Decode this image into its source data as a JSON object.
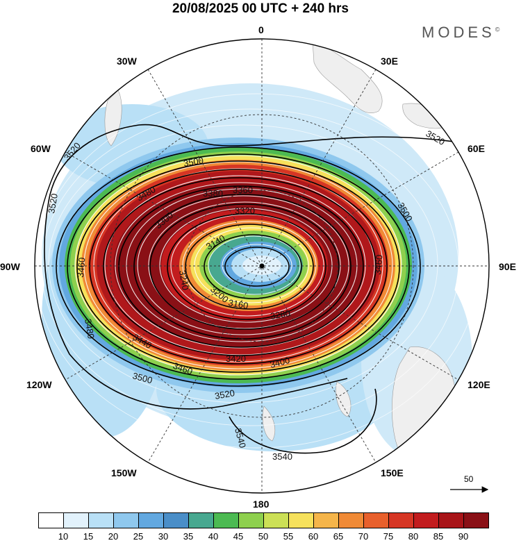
{
  "title": "20/08/2025  00 UTC  + 240 hrs",
  "brand": "MODES",
  "brand_mark": "©",
  "map": {
    "projection": "south polar stereographic",
    "longitude_labels": [
      "0",
      "30E",
      "60E",
      "90E",
      "120E",
      "150E",
      "180",
      "150W",
      "120W",
      "90W",
      "60W",
      "30W"
    ],
    "contour_labels": [
      "3520",
      "3520",
      "3520",
      "3500",
      "3500",
      "3500",
      "3480",
      "3480",
      "3460",
      "3460",
      "3460",
      "3440",
      "3420",
      "3400",
      "3380",
      "3360",
      "3320",
      "3300",
      "3280",
      "3240",
      "3200",
      "3160",
      "3140",
      "3520",
      "3540",
      "3540"
    ],
    "vector_reference": "50"
  },
  "legend": {
    "ticks": [
      "10",
      "15",
      "20",
      "25",
      "30",
      "35",
      "40",
      "45",
      "50",
      "55",
      "60",
      "65",
      "70",
      "75",
      "80",
      "85",
      "90"
    ],
    "colors": [
      "#ffffff",
      "#e2f2fc",
      "#b9e0f6",
      "#8fc8ee",
      "#62a8e0",
      "#4a8ec8",
      "#48a890",
      "#4cba52",
      "#8ed04e",
      "#cce056",
      "#f6e15c",
      "#f5b54a",
      "#f08a36",
      "#e8602c",
      "#d63624",
      "#c21c1e",
      "#a81418",
      "#8a1016"
    ]
  }
}
